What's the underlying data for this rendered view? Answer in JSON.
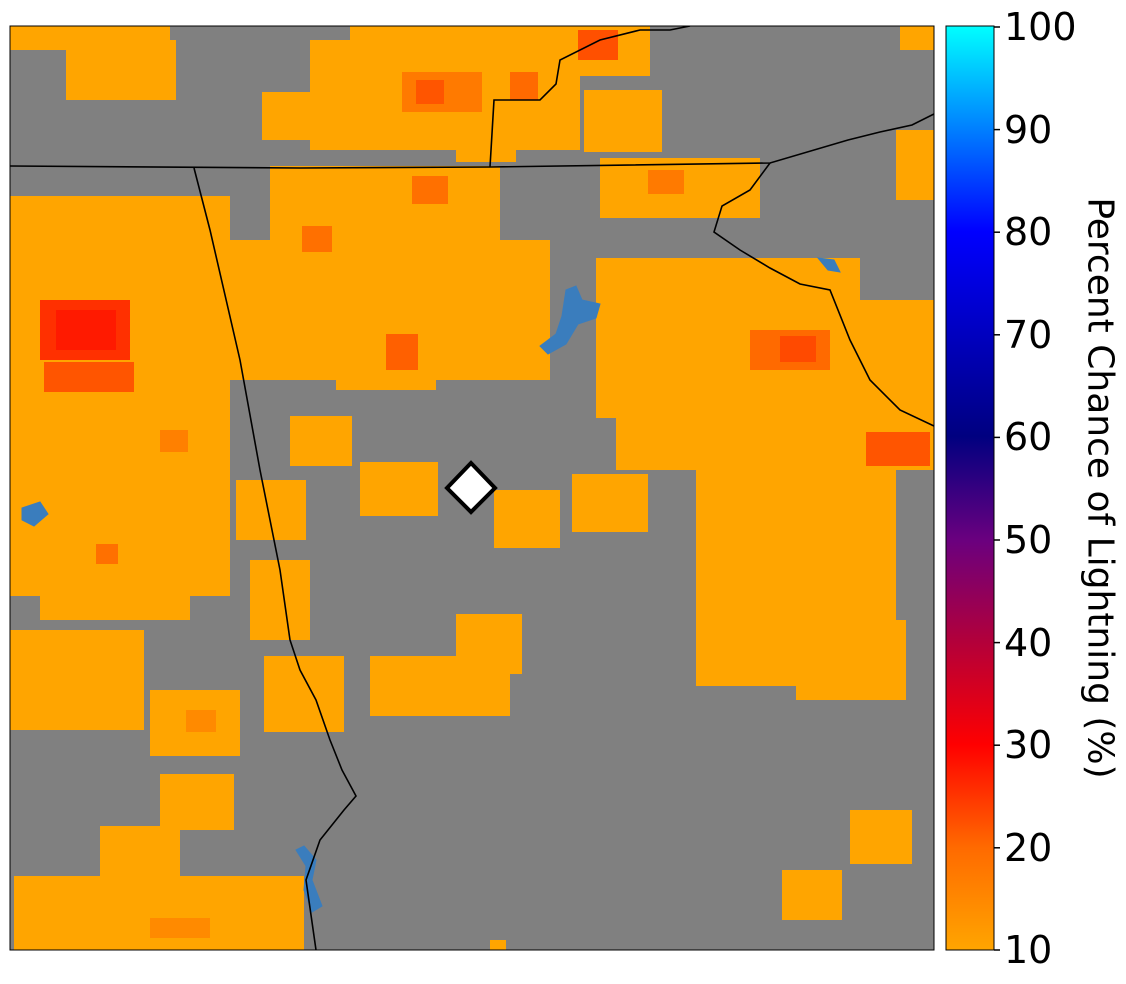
{
  "colorbar": {
    "label": "Percent Chance of Lightning (%)",
    "ticks": [
      "100",
      "90",
      "80",
      "70",
      "60",
      "50",
      "40",
      "30",
      "20",
      "10"
    ],
    "range": [
      10,
      100
    ],
    "colormap": [
      {
        "value": 10,
        "color": "#ffa500"
      },
      {
        "value": 20,
        "color": "#ff6a00"
      },
      {
        "value": 30,
        "color": "#ff0000"
      },
      {
        "value": 40,
        "color": "#b3003a"
      },
      {
        "value": 50,
        "color": "#6a007f"
      },
      {
        "value": 60,
        "color": "#000080"
      },
      {
        "value": 70,
        "color": "#0000c0"
      },
      {
        "value": 80,
        "color": "#0000ff"
      },
      {
        "value": 90,
        "color": "#0080ff"
      },
      {
        "value": 100,
        "color": "#00ffff"
      }
    ]
  },
  "map": {
    "background_color": "#808080",
    "water_color": "#3a7dbd",
    "boundary_color": "#000000",
    "marker": {
      "shape": "diamond",
      "fill": "#ffffff",
      "stroke": "#000000"
    }
  }
}
